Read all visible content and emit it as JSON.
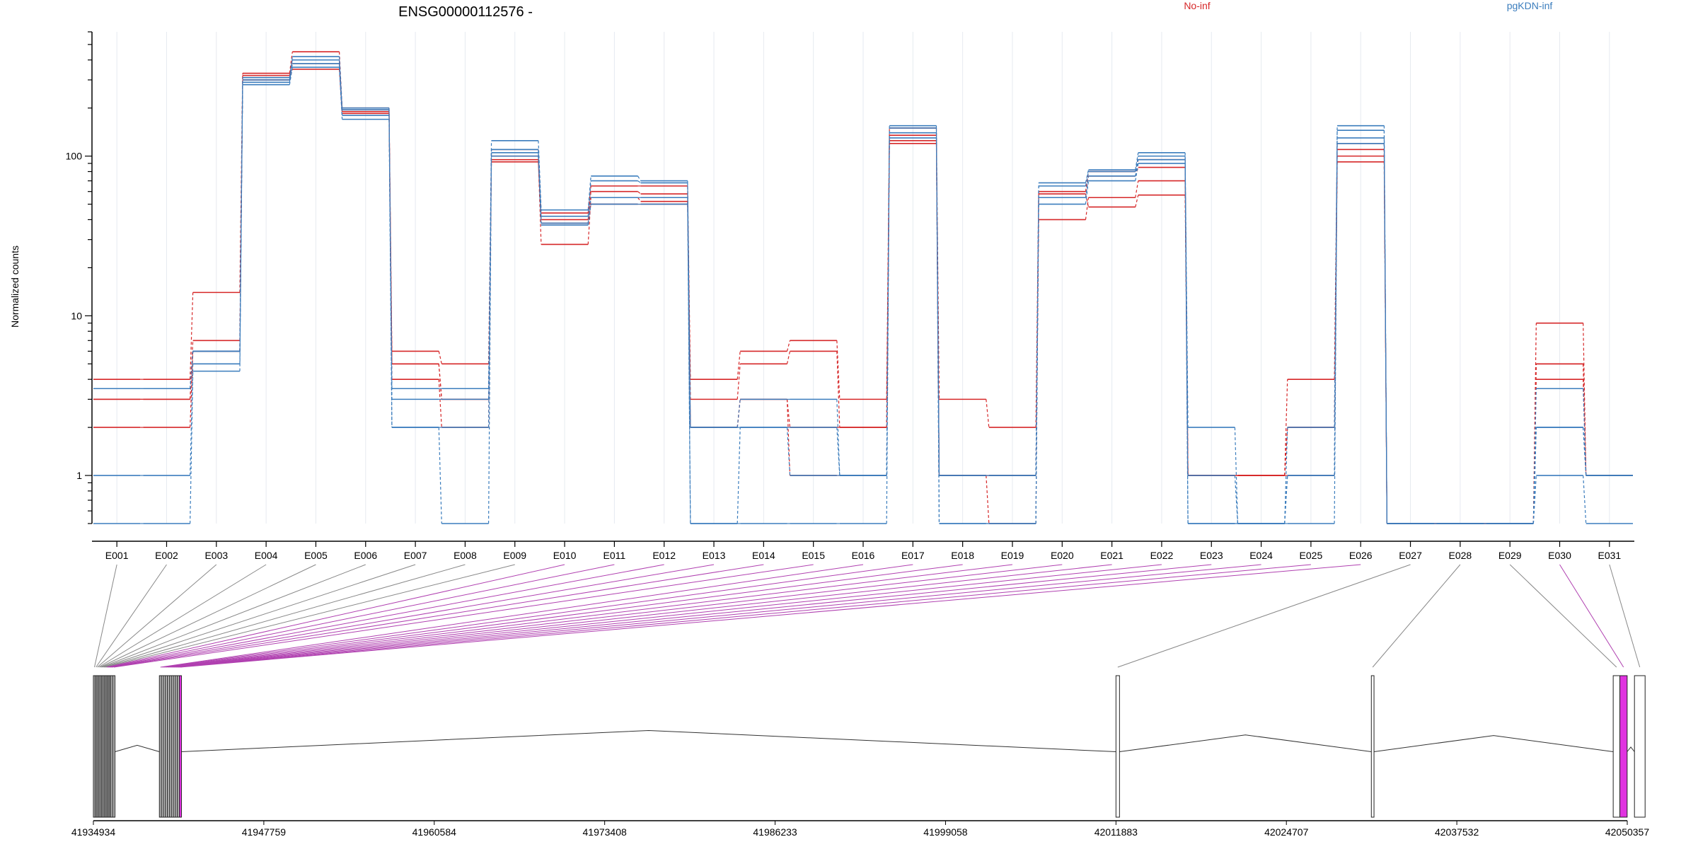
{
  "chart_data": {
    "type": "line",
    "title": "ENSG00000112576 -",
    "ylabel": "Normalized counts",
    "y_scale": "log",
    "ylim": [
      0.5,
      600
    ],
    "y_ticks": [
      1,
      10,
      100
    ],
    "grid": "vertical",
    "legend_position": "top",
    "legend": [
      {
        "label": "No-inf",
        "color": "#d62728"
      },
      {
        "label": "pgKDN-inf",
        "color": "#3b7dbd"
      }
    ],
    "categories": [
      "E001",
      "E002",
      "E003",
      "E004",
      "E005",
      "E006",
      "E007",
      "E008",
      "E009",
      "E010",
      "E011",
      "E012",
      "E013",
      "E014",
      "E015",
      "E016",
      "E017",
      "E018",
      "E019",
      "E020",
      "E021",
      "E022",
      "E023",
      "E024",
      "E025",
      "E026",
      "E027",
      "E028",
      "E029",
      "E030",
      "E031"
    ],
    "series": [
      {
        "group": "No-inf",
        "values": [
          4,
          4,
          14,
          330,
          450,
          200,
          6,
          5,
          110,
          44,
          65,
          65,
          4,
          6,
          7,
          3,
          150,
          3,
          2,
          60,
          80,
          95,
          1,
          1,
          4,
          120,
          0.5,
          0.5,
          0.5,
          9,
          1
        ]
      },
      {
        "group": "No-inf",
        "values": [
          3,
          3,
          7,
          320,
          400,
          190,
          5,
          3,
          100,
          40,
          60,
          58,
          3,
          5,
          6,
          2,
          135,
          1,
          1,
          55,
          75,
          85,
          1,
          1,
          2,
          110,
          0.5,
          0.5,
          0.5,
          5,
          1
        ]
      },
      {
        "group": "No-inf",
        "values": [
          2,
          2,
          6,
          300,
          350,
          185,
          4,
          2,
          95,
          28,
          55,
          52,
          2,
          3,
          1,
          1,
          120,
          1,
          1,
          40,
          55,
          70,
          1,
          1,
          1,
          100,
          0.5,
          0.5,
          0.5,
          5,
          1
        ]
      },
      {
        "group": "No-inf",
        "values": [
          3,
          3,
          6,
          310,
          380,
          195,
          5,
          3,
          92,
          38,
          50,
          50,
          2,
          3,
          2,
          2,
          125,
          1,
          0.5,
          58,
          48,
          57,
          1,
          1,
          2,
          92,
          0.5,
          0.5,
          0.5,
          4,
          1
        ]
      },
      {
        "group": "pgKDN-inf",
        "values": [
          3.5,
          3.5,
          6,
          300,
          420,
          200,
          3.5,
          3.5,
          125,
          46,
          75,
          70,
          2,
          3,
          3,
          1,
          155,
          1,
          1,
          68,
          82,
          105,
          2,
          0.5,
          2,
          155,
          0.5,
          0.5,
          0.5,
          3.5,
          1
        ]
      },
      {
        "group": "pgKDN-inf",
        "values": [
          3.5,
          3.5,
          6,
          310,
          400,
          195,
          3,
          3,
          110,
          42,
          70,
          68,
          2,
          2,
          2,
          1,
          150,
          1,
          1,
          65,
          80,
          100,
          1,
          0.5,
          1,
          145,
          0.5,
          0.5,
          0.5,
          2,
          1
        ]
      },
      {
        "group": "pgKDN-inf",
        "values": [
          1,
          1,
          5,
          290,
          380,
          180,
          2,
          2,
          105,
          38,
          55,
          55,
          0.5,
          2,
          1,
          1,
          140,
          0.5,
          0.5,
          55,
          75,
          95,
          0.5,
          0.5,
          1,
          130,
          0.5,
          0.5,
          0.5,
          2,
          1
        ]
      },
      {
        "group": "pgKDN-inf",
        "values": [
          0.5,
          0.5,
          4.5,
          280,
          360,
          170,
          2,
          0.5,
          100,
          37,
          50,
          50,
          0.5,
          0.5,
          0.5,
          0.5,
          130,
          0.5,
          0.5,
          50,
          70,
          90,
          0.5,
          0.5,
          0.5,
          120,
          0.5,
          0.5,
          0.5,
          1,
          0.5
        ]
      }
    ],
    "highlighted_exons": [
      "E010",
      "E011",
      "E012",
      "E013",
      "E014",
      "E015",
      "E016",
      "E017",
      "E018",
      "E019",
      "E020",
      "E021",
      "E022",
      "E023",
      "E024",
      "E025",
      "E026",
      "E030"
    ],
    "gene_model": {
      "coordinate_ticks": [
        "41934934",
        "41947759",
        "41960584",
        "41973408",
        "41986233",
        "41999058",
        "42011883",
        "42024707",
        "42037532",
        "42050357"
      ],
      "exon_coordinates": [
        [
          41934934,
          41935050
        ],
        [
          41935050,
          41935150
        ],
        [
          41935150,
          41935250
        ],
        [
          41935250,
          41935350
        ],
        [
          41935350,
          41935450
        ],
        [
          41935450,
          41935550
        ],
        [
          41935550,
          41935650
        ],
        [
          41935650,
          41935750
        ],
        [
          41935750,
          41935850
        ],
        [
          41935850,
          41935950
        ],
        [
          41935950,
          41936050
        ],
        [
          41936050,
          41936150
        ],
        [
          41936150,
          41936250
        ],
        [
          41936250,
          41936400
        ],
        [
          41936400,
          41936550
        ],
        [
          41939900,
          41940050
        ],
        [
          41940050,
          41940200
        ],
        [
          41940200,
          41940350
        ],
        [
          41940350,
          41940500
        ],
        [
          41940500,
          41940650
        ],
        [
          41940650,
          41940800
        ],
        [
          41940800,
          41940950
        ],
        [
          41940950,
          41941100
        ],
        [
          41941100,
          41941250
        ],
        [
          41941250,
          41941400
        ],
        [
          41941400,
          41941520
        ],
        [
          42011883,
          42012150
        ],
        [
          42031100,
          42031300
        ],
        [
          42049300,
          42049800
        ],
        [
          42049800,
          42050350
        ],
        [
          42050900,
          42051700
        ]
      ]
    }
  }
}
